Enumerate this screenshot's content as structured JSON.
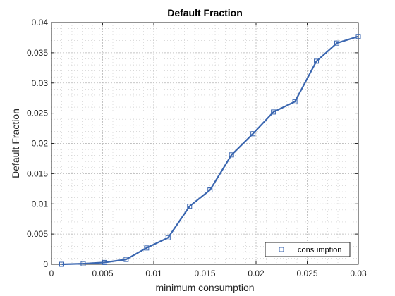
{
  "chart_data": {
    "type": "line",
    "title": "Default Fraction",
    "xlabel": "minimum consumption",
    "ylabel": "Default Fraction",
    "xlim": [
      0,
      0.03
    ],
    "ylim": [
      0,
      0.04
    ],
    "x_ticks": [
      0,
      0.005,
      0.01,
      0.015,
      0.02,
      0.025,
      0.03
    ],
    "x_tick_labels": [
      "0",
      "0.005",
      "0.01",
      "0.015",
      "0.02",
      "0.025",
      "0.03"
    ],
    "y_ticks": [
      0,
      0.005,
      0.01,
      0.015,
      0.02,
      0.025,
      0.03,
      0.035,
      0.04
    ],
    "y_tick_labels": [
      "0",
      "0.005",
      "0.01",
      "0.015",
      "0.02",
      "0.025",
      "0.03",
      "0.035",
      "0.04"
    ],
    "grid": "on (major and minor, dotted)",
    "legend_position": "bottom-right",
    "line_color": "#3a66b0",
    "marker": "square",
    "series": [
      {
        "name": "consumption",
        "x": [
          0.001,
          0.0031,
          0.0052,
          0.0073,
          0.0093,
          0.0114,
          0.0135,
          0.0155,
          0.0176,
          0.0197,
          0.0217,
          0.0238,
          0.0259,
          0.0279,
          0.03
        ],
        "y": [
          0.0,
          0.0001,
          0.0003,
          0.0008,
          0.0027,
          0.0044,
          0.0096,
          0.0123,
          0.0181,
          0.0216,
          0.0252,
          0.0269,
          0.0336,
          0.0366,
          0.0377
        ]
      }
    ]
  }
}
